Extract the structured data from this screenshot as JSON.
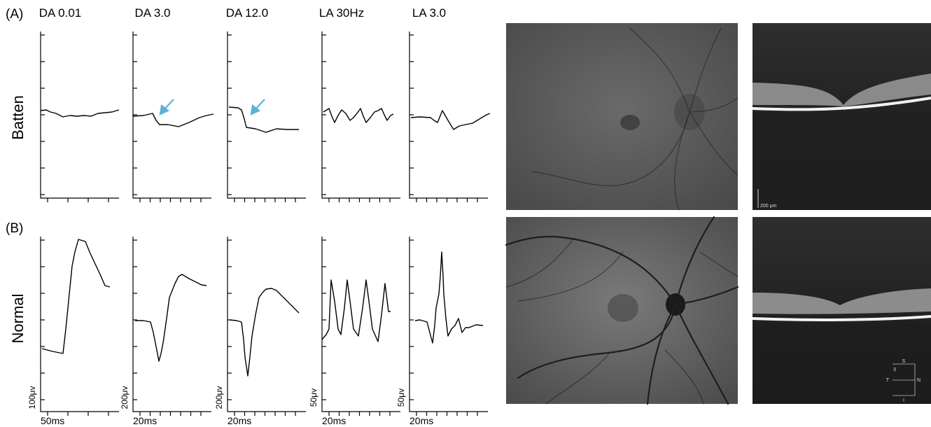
{
  "figure": {
    "panels": [
      "(A)",
      "(B)"
    ],
    "rows": [
      "Batten",
      "Normal"
    ],
    "columns": [
      {
        "title": "DA 0.01",
        "amplitude_scale": "100μv",
        "time_scale": "50ms"
      },
      {
        "title": "DA 3.0",
        "amplitude_scale": "200μv",
        "time_scale": "20ms"
      },
      {
        "title": "DA 12.0",
        "amplitude_scale": "200μv",
        "time_scale": "20ms"
      },
      {
        "title": "LA 30Hz",
        "amplitude_scale": "50μv",
        "time_scale": "20ms"
      },
      {
        "title": "LA 3.0",
        "amplitude_scale": "50μv",
        "time_scale": "20ms"
      }
    ],
    "oct_scale_bar": "200 μm",
    "oct_orientation": {
      "number": "3",
      "superior": "S",
      "temporal": "T",
      "nasal": "N",
      "inferior": "I"
    }
  }
}
